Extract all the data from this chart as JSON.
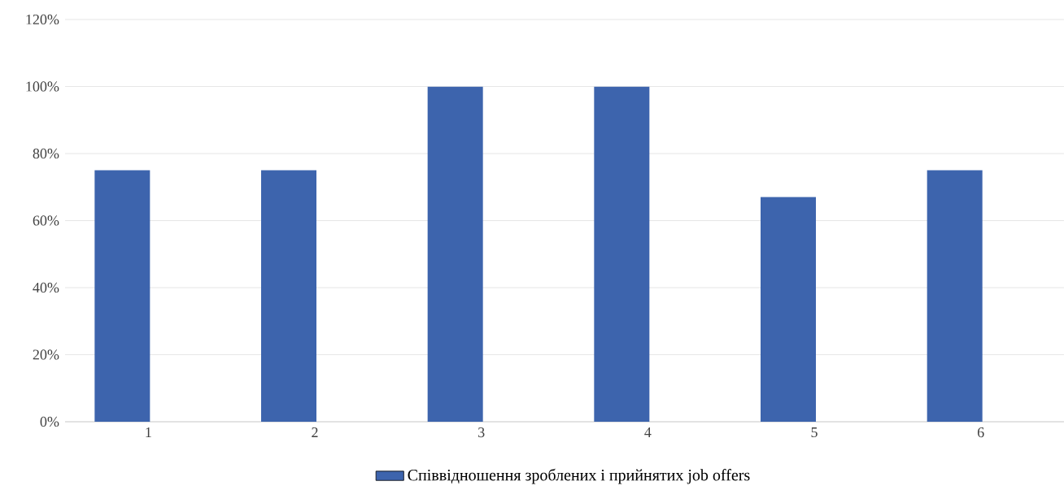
{
  "chart_data": {
    "type": "bar",
    "categories": [
      "1",
      "2",
      "3",
      "4",
      "5",
      "6"
    ],
    "series": [
      {
        "name": "Співвідношення зроблених і прийнятих job offers",
        "color": "#3d64ad",
        "values": [
          75,
          75,
          100,
          100,
          67,
          75
        ]
      }
    ],
    "ylim": [
      0,
      120
    ],
    "yticks": [
      {
        "value": 0,
        "label": "0%"
      },
      {
        "value": 20,
        "label": "20%"
      },
      {
        "value": 40,
        "label": "40%"
      },
      {
        "value": 60,
        "label": "60%"
      },
      {
        "value": 80,
        "label": "80%"
      },
      {
        "value": 100,
        "label": "100%"
      },
      {
        "value": 120,
        "label": "120%"
      }
    ],
    "grid": "y",
    "legend": "bottom"
  }
}
